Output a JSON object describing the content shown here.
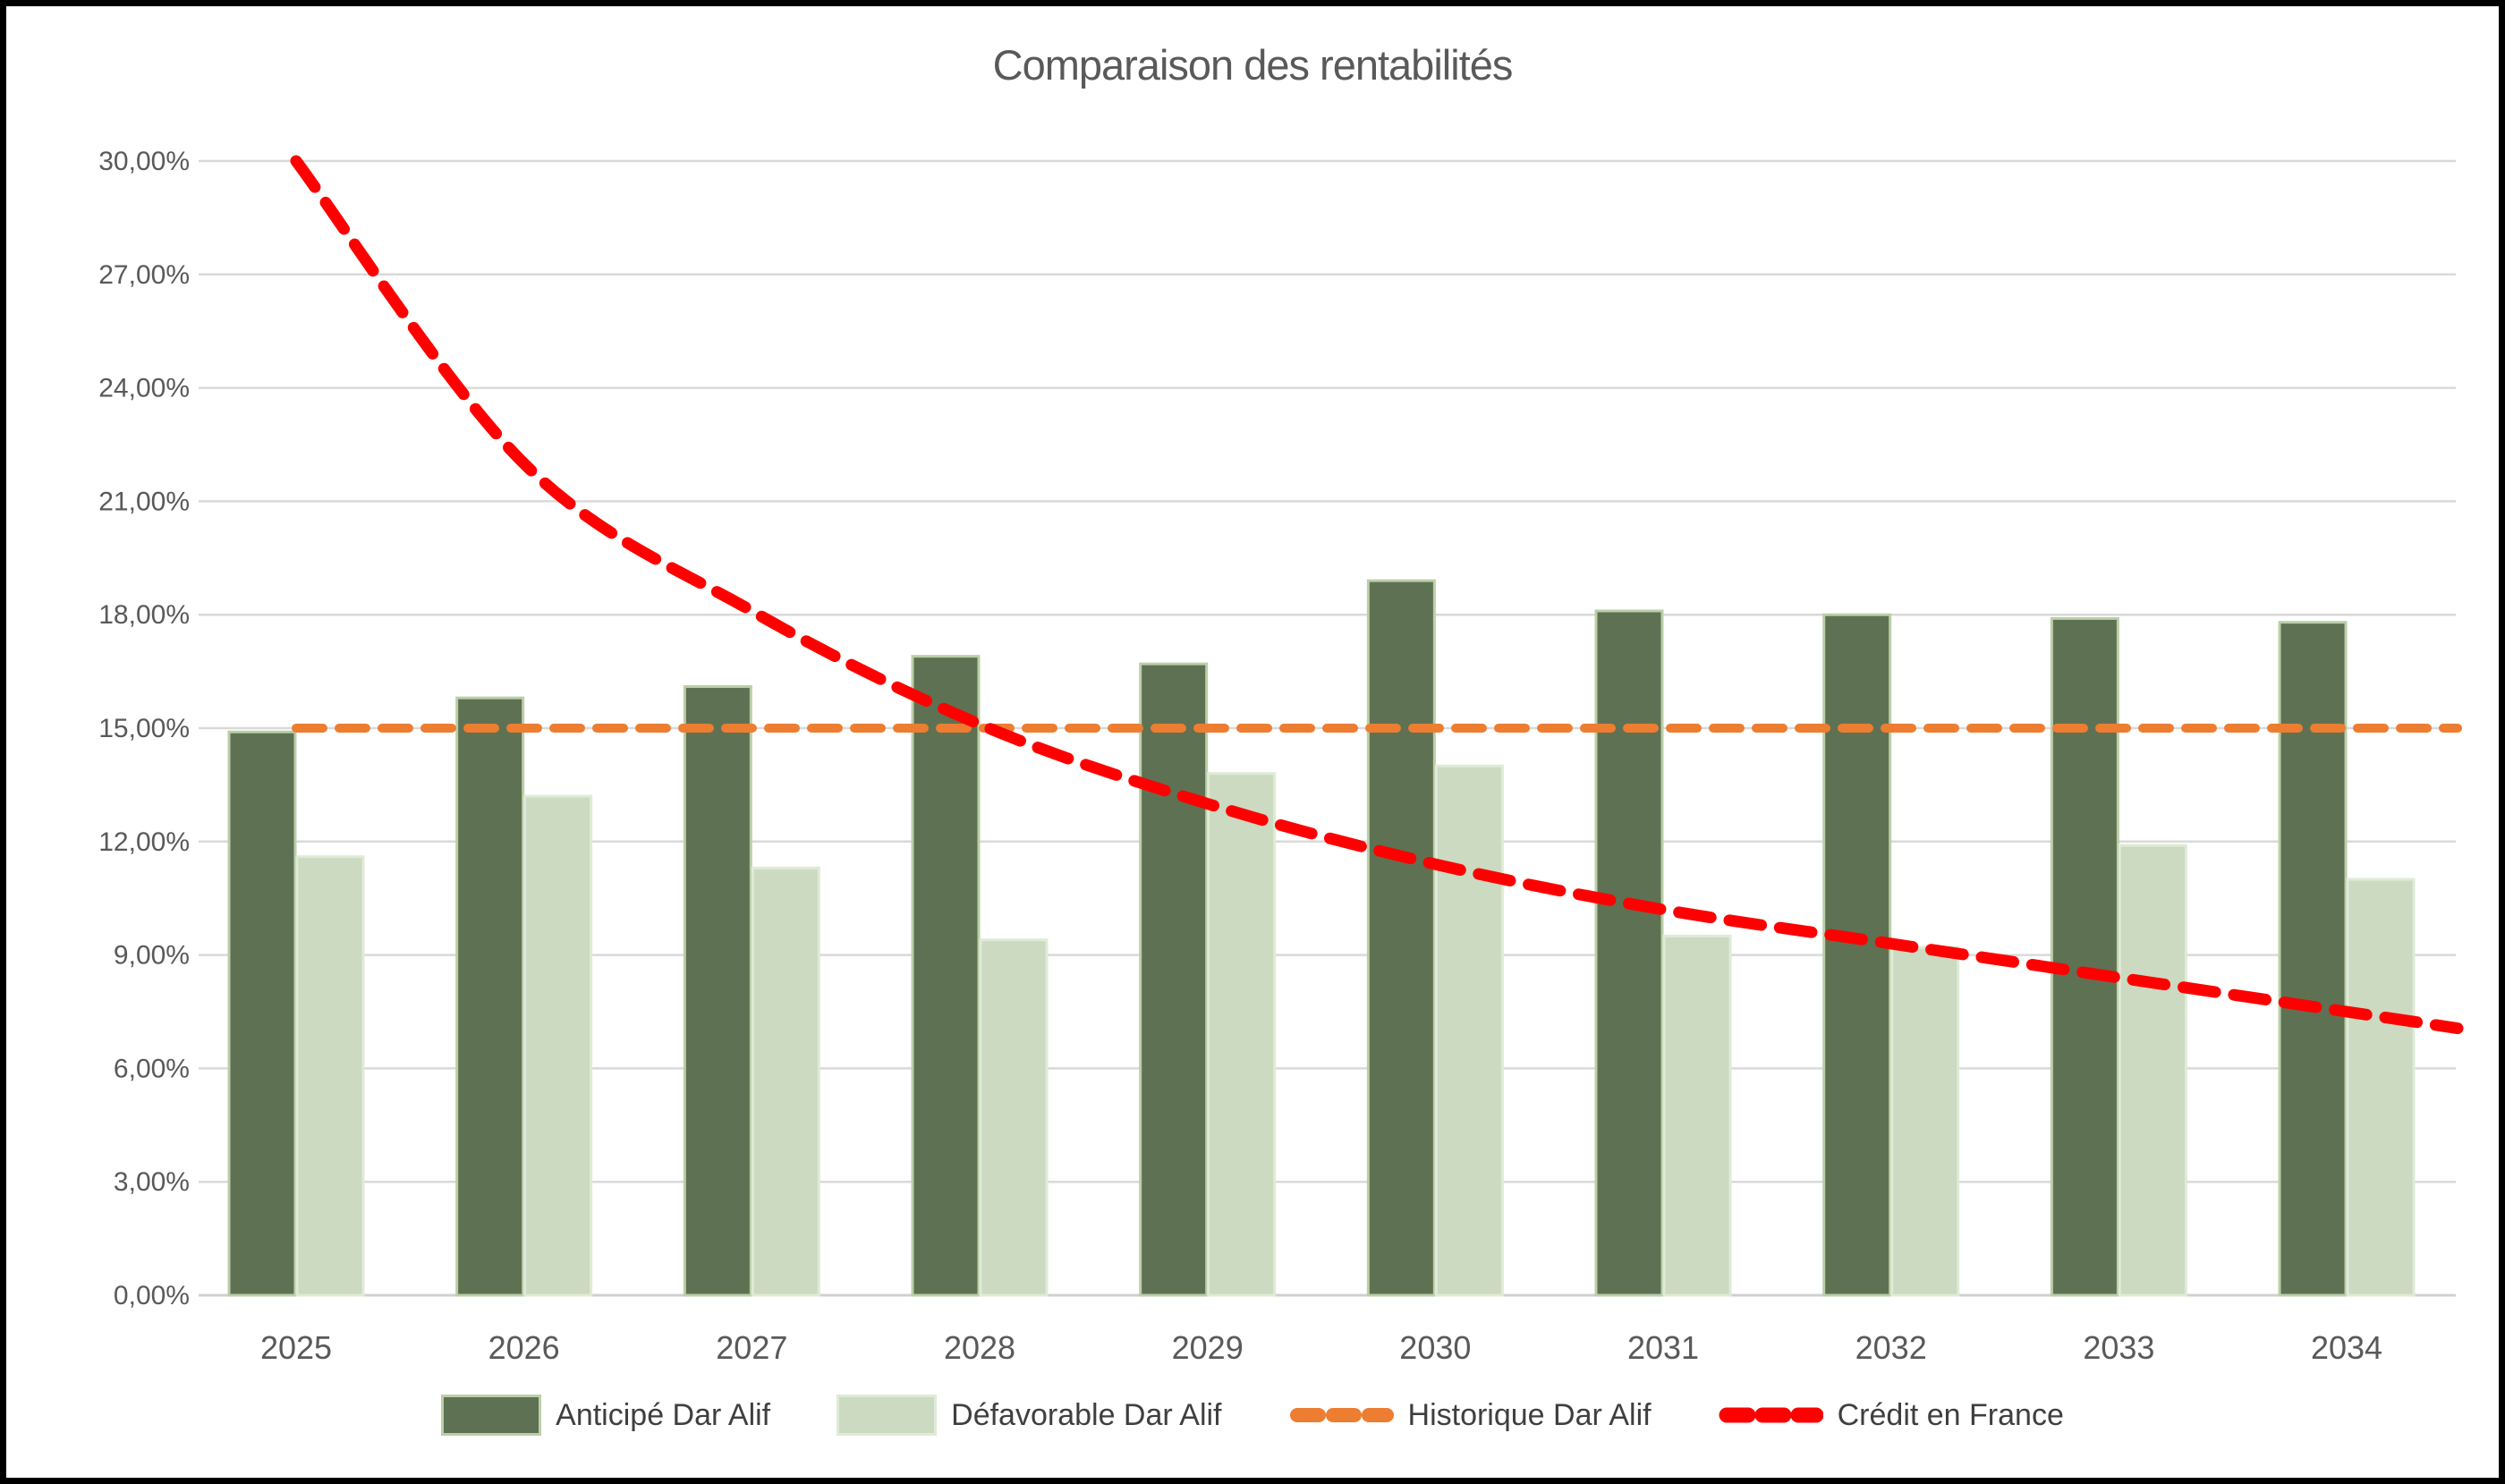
{
  "chart_data": {
    "type": "bar+line",
    "title": "Comparaison des rentabilités",
    "categories": [
      "2025",
      "2026",
      "2027",
      "2028",
      "2029",
      "2030",
      "2031",
      "2032",
      "2033",
      "2034"
    ],
    "y_axis": {
      "min": 0,
      "max": 30,
      "step": 3,
      "unit": "%",
      "tick_labels": [
        "0,00%",
        "3,00%",
        "6,00%",
        "9,00%",
        "12,00%",
        "15,00%",
        "18,00%",
        "21,00%",
        "24,00%",
        "27,00%",
        "30,00%"
      ]
    },
    "grid": "horizontal",
    "legend_position": "bottom",
    "series": [
      {
        "name": "Anticipé Dar Alif",
        "type": "bar",
        "color": "#5F7153",
        "border_color": "#BACFA8",
        "values": [
          14.9,
          15.8,
          16.1,
          16.9,
          16.7,
          18.9,
          18.1,
          18.0,
          17.9,
          17.8
        ]
      },
      {
        "name": "Défavorable Dar Alif",
        "type": "bar",
        "color": "#CBDAC1",
        "border_color": "#DFEBD6",
        "values": [
          11.6,
          13.2,
          11.3,
          9.4,
          13.8,
          14.0,
          9.5,
          9.2,
          11.9,
          11.0
        ]
      },
      {
        "name": "Historique Dar Alif",
        "type": "line",
        "style": "dashed",
        "color": "#ED7D31",
        "values": [
          15.0,
          15.0,
          15.0,
          15.0,
          15.0,
          15.0,
          15.0,
          15.0,
          15.0,
          15.0
        ]
      },
      {
        "name": "Crédit en France",
        "type": "line",
        "style": "dashed",
        "smooth": true,
        "color": "#FF0000",
        "values": [
          30.0,
          22.0,
          18.1,
          15.1,
          13.0,
          11.4,
          10.2,
          9.3,
          8.4,
          7.5
        ]
      }
    ],
    "colors": {
      "gridline": "#D9D9D9",
      "axis_line": "#D0D0D0",
      "tick_text": "#595959",
      "title_text": "#595959",
      "legend_text": "#3F3F3F",
      "frame_border": "#000000",
      "background": "#FFFFFF"
    }
  }
}
